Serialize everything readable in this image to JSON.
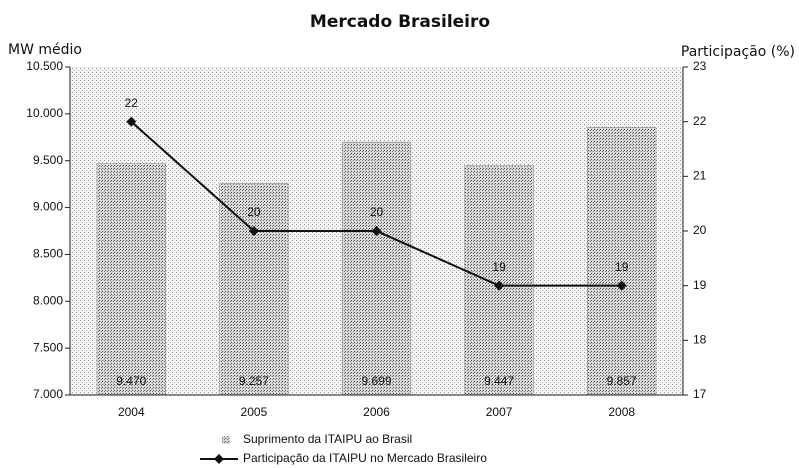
{
  "chart_data": {
    "type": "bar",
    "title": "Mercado Brasileiro",
    "y_label": "MW médio",
    "y2_label": "Participação (%)",
    "categories": [
      "2004",
      "2005",
      "2006",
      "2007",
      "2008"
    ],
    "series": [
      {
        "name": "Suprimento da ITAIPU ao Brasil",
        "type": "bar",
        "color": "#8a8a8a",
        "values": [
          9470,
          9257,
          9699,
          9447,
          9857
        ],
        "value_labels": [
          "9.470",
          "9.257",
          "9.699",
          "9.447",
          "9.857"
        ]
      },
      {
        "name": "Participação da ITAIPU no Mercado Brasileiro",
        "type": "line",
        "axis": "y2",
        "color": "#111111",
        "values": [
          22,
          20,
          20,
          19,
          19
        ]
      }
    ],
    "ylim": [
      7000,
      10500
    ],
    "yticks": [
      {
        "value": 7000,
        "label": "7.000"
      },
      {
        "value": 7500,
        "label": "7.500"
      },
      {
        "value": 8000,
        "label": "8.000"
      },
      {
        "value": 8500,
        "label": "8.500"
      },
      {
        "value": 9000,
        "label": "9.000"
      },
      {
        "value": 9500,
        "label": "9.500"
      },
      {
        "value": 10000,
        "label": "10.000"
      },
      {
        "value": 10500,
        "label": "10.500"
      }
    ],
    "y2lim": [
      17,
      23
    ],
    "y2ticks": [
      17,
      18,
      19,
      20,
      21,
      22,
      23
    ]
  }
}
